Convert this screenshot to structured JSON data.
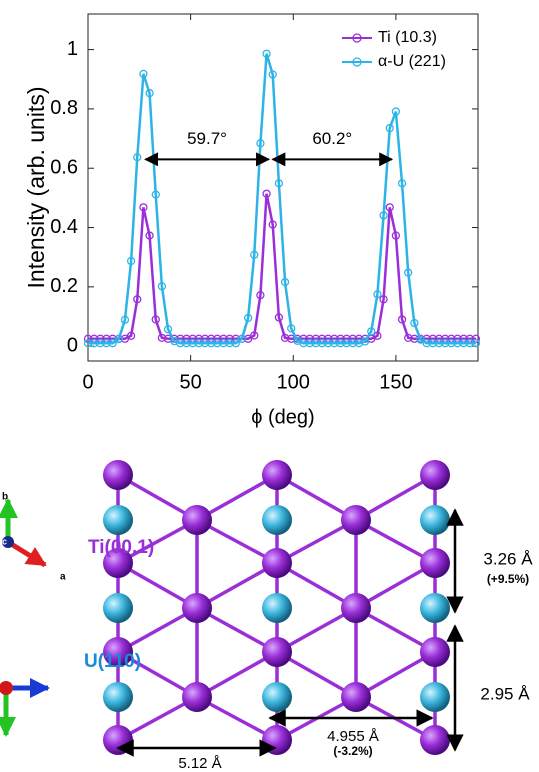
{
  "chart_data": {
    "type": "line",
    "xlabel": "ϕ (deg)",
    "ylabel": "Intensity (arb. units)",
    "x": [
      0,
      3,
      6,
      9,
      12,
      15,
      18,
      21,
      24,
      27,
      30,
      33,
      36,
      39,
      42,
      45,
      48,
      51,
      54,
      57,
      60,
      63,
      66,
      69,
      72,
      75,
      78,
      81,
      84,
      87,
      90,
      93,
      96,
      99,
      102,
      105,
      108,
      111,
      114,
      117,
      120,
      123,
      126,
      129,
      132,
      135,
      138,
      141,
      144,
      147,
      150,
      153,
      156,
      159,
      162,
      165,
      168,
      171,
      174,
      177,
      180,
      183,
      186,
      189
    ],
    "series": [
      {
        "name": "Ti (10.3)",
        "color": "#9a2fd8",
        "values": [
          0.025,
          0.025,
          0.025,
          0.025,
          0.025,
          0.025,
          0.025,
          0.035,
          0.158,
          0.468,
          0.373,
          0.09,
          0.028,
          0.025,
          0.025,
          0.025,
          0.025,
          0.025,
          0.025,
          0.025,
          0.025,
          0.025,
          0.025,
          0.025,
          0.025,
          0.025,
          0.025,
          0.036,
          0.172,
          0.514,
          0.41,
          0.097,
          0.028,
          0.025,
          0.025,
          0.025,
          0.025,
          0.025,
          0.025,
          0.025,
          0.025,
          0.025,
          0.025,
          0.025,
          0.025,
          0.025,
          0.025,
          0.035,
          0.158,
          0.468,
          0.373,
          0.09,
          0.028,
          0.025,
          0.025,
          0.025,
          0.025,
          0.025,
          0.025,
          0.025,
          0.025,
          0.025,
          0.025,
          0.025
        ]
      },
      {
        "name": "α-U (221)",
        "color": "#2db4e6",
        "values": [
          0.01,
          0.01,
          0.01,
          0.01,
          0.01,
          0.024,
          0.089,
          0.287,
          0.637,
          0.918,
          0.853,
          0.511,
          0.202,
          0.057,
          0.017,
          0.01,
          0.01,
          0.01,
          0.01,
          0.01,
          0.01,
          0.01,
          0.01,
          0.01,
          0.01,
          0.025,
          0.095,
          0.308,
          0.684,
          0.986,
          0.916,
          0.549,
          0.216,
          0.06,
          0.018,
          0.01,
          0.01,
          0.01,
          0.01,
          0.01,
          0.01,
          0.01,
          0.01,
          0.01,
          0.01,
          0.016,
          0.05,
          0.175,
          0.441,
          0.735,
          0.791,
          0.549,
          0.248,
          0.078,
          0.022,
          0.01,
          0.01,
          0.01,
          0.01,
          0.01,
          0.01,
          0.01,
          0.01,
          0.01
        ]
      }
    ],
    "xlim": [
      0,
      190
    ],
    "xticks": [
      0,
      50,
      100,
      150
    ],
    "ylim": [
      -0.05,
      1.12
    ],
    "yticks": [
      0,
      0.2,
      0.4,
      0.6,
      0.8,
      1
    ],
    "legend": "upper right",
    "annotations": [
      {
        "text": "59.7°",
        "x1": 28,
        "x2": 88,
        "y": 0.63
      },
      {
        "text": "60.2°",
        "x1": 90,
        "x2": 148,
        "y": 0.63
      }
    ]
  },
  "diagram": {
    "ti_label": "Ti(00.1)",
    "u_label": "U(110)",
    "axis_b": "b",
    "axis_a": "a",
    "axis_c": "c",
    "dim1": "3.26 Å",
    "dim1_note": "(+9.5%)",
    "dim2": "2.95 Å",
    "dim3": "4.955 Å",
    "dim3_note": "(-3.2%)",
    "dim4": "5.12 Å"
  }
}
